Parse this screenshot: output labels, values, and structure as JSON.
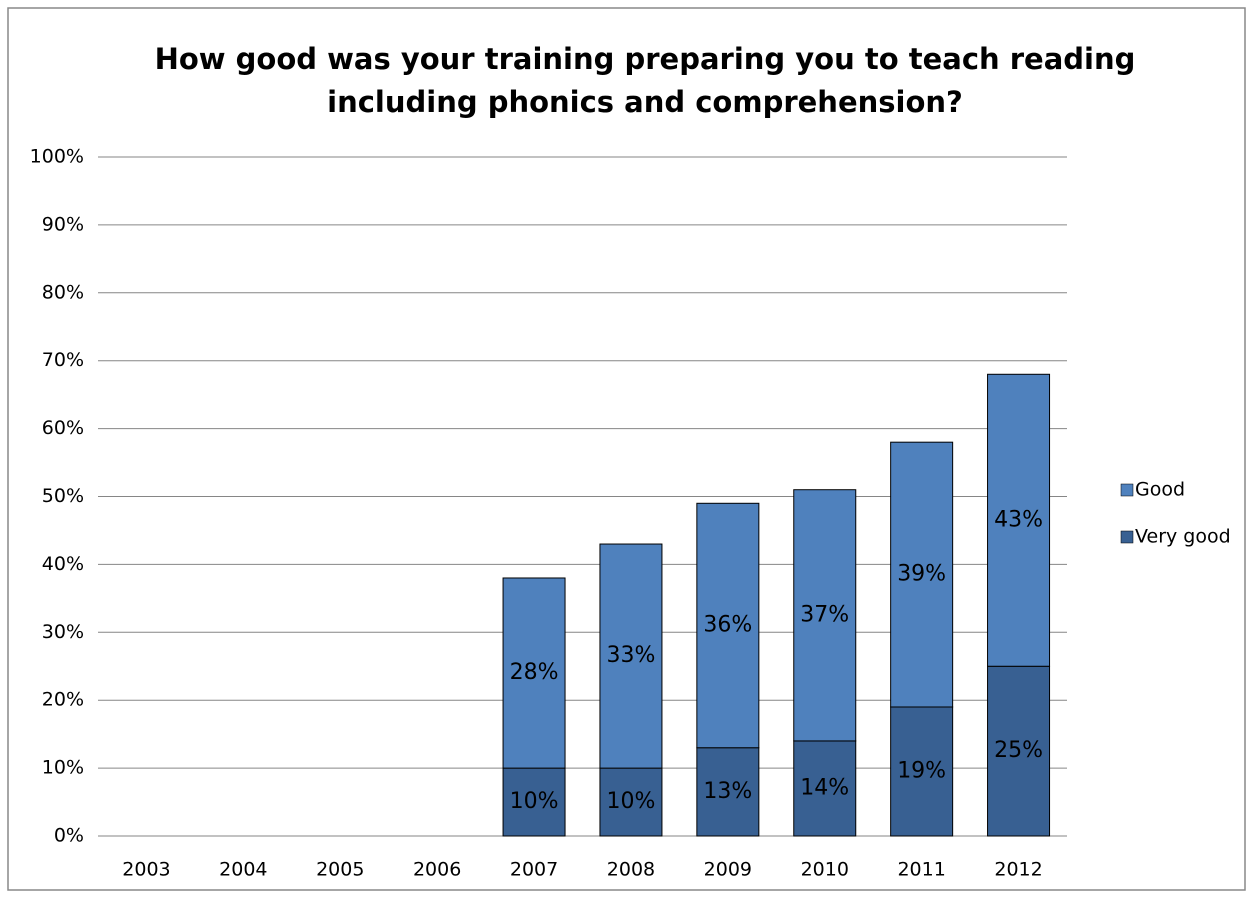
{
  "chart_data": {
    "type": "stacked_bar",
    "title": [
      "How good was your training preparing you to teach reading",
      "including phonics and comprehension?"
    ],
    "categories": [
      "2003",
      "2004",
      "2005",
      "2006",
      "2007",
      "2008",
      "2009",
      "2010",
      "2011",
      "2012"
    ],
    "series": [
      {
        "name": "Very good",
        "color": "#386092",
        "label_color": "#ffffff",
        "values": [
          null,
          null,
          null,
          null,
          10,
          10,
          13,
          14,
          19,
          25
        ],
        "value_labels": [
          null,
          null,
          null,
          null,
          "10%",
          "10%",
          "13%",
          "14%",
          "19%",
          "25%"
        ]
      },
      {
        "name": "Good",
        "color": "#4f81bd",
        "label_color": "#000000",
        "values": [
          null,
          null,
          null,
          null,
          28,
          33,
          36,
          37,
          39,
          43
        ],
        "value_labels": [
          null,
          null,
          null,
          null,
          "28%",
          "33%",
          "36%",
          "37%",
          "39%",
          "43%"
        ]
      }
    ],
    "ylim": [
      0,
      100
    ],
    "yticks": [
      {
        "value": 0,
        "label": "0%"
      },
      {
        "value": 10,
        "label": "10%"
      },
      {
        "value": 20,
        "label": "20%"
      },
      {
        "value": 30,
        "label": "30%"
      },
      {
        "value": 40,
        "label": "40%"
      },
      {
        "value": 50,
        "label": "50%"
      },
      {
        "value": 60,
        "label": "60%"
      },
      {
        "value": 70,
        "label": "70%"
      },
      {
        "value": 80,
        "label": "80%"
      },
      {
        "value": 90,
        "label": "90%"
      },
      {
        "value": 100,
        "label": "100%"
      }
    ],
    "grid": true,
    "legend": "right"
  }
}
